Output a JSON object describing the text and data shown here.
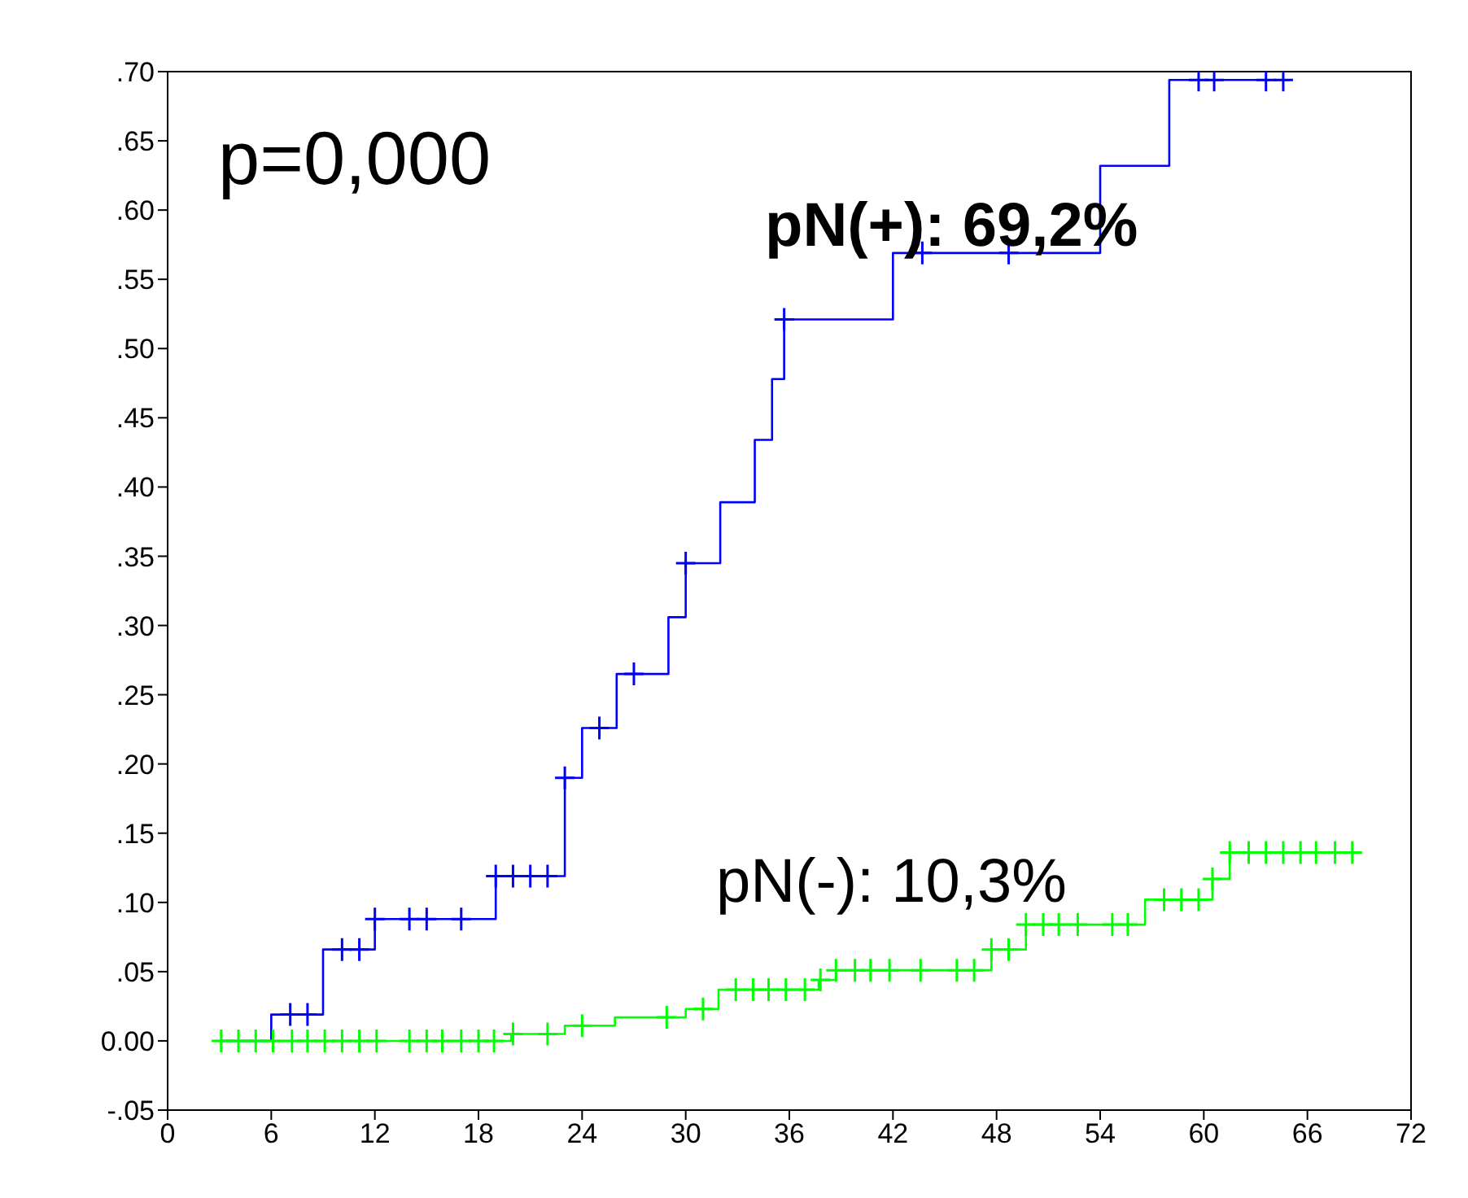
{
  "chart_data": {
    "type": "step",
    "annotations": [
      "p=0,000"
    ],
    "xlim": [
      0,
      72
    ],
    "xticks": [
      0,
      6,
      12,
      18,
      24,
      30,
      36,
      42,
      48,
      54,
      60,
      66,
      72
    ],
    "ylim": [
      -0.05,
      0.7
    ],
    "yticks": [
      {
        "value": -0.05,
        "label": "-.05"
      },
      {
        "value": 0,
        "label": "0.00"
      },
      {
        "value": 0.05,
        "label": ".05"
      },
      {
        "value": 0.1,
        "label": ".10"
      },
      {
        "value": 0.15,
        "label": ".15"
      },
      {
        "value": 0.2,
        "label": ".20"
      },
      {
        "value": 0.25,
        "label": ".25"
      },
      {
        "value": 0.3,
        "label": ".30"
      },
      {
        "value": 0.35,
        "label": ".35"
      },
      {
        "value": 0.4,
        "label": ".40"
      },
      {
        "value": 0.45,
        "label": ".45"
      },
      {
        "value": 0.5,
        "label": ".50"
      },
      {
        "value": 0.55,
        "label": ".55"
      },
      {
        "value": 0.6,
        "label": ".60"
      },
      {
        "value": 0.65,
        "label": ".65"
      },
      {
        "value": 0.7,
        "label": ".70"
      }
    ],
    "grid": false,
    "legend": false,
    "series": [
      {
        "name": "pN(+): 69,2%",
        "color": "#0000ff",
        "x": [
          3,
          6,
          9,
          12,
          19,
          23,
          24,
          26,
          29,
          30,
          32,
          34,
          35,
          35.7,
          42,
          54,
          58,
          65
        ],
        "values": [
          0,
          0.019,
          0.066,
          0.088,
          0.119,
          0.19,
          0.226,
          0.265,
          0.306,
          0.345,
          0.389,
          0.434,
          0.478,
          0.521,
          0.569,
          0.632,
          0.694,
          0.694
        ]
      },
      {
        "type": "scatter",
        "marker": "cross",
        "color": "#0000ff",
        "x": [
          7.1,
          8.1,
          10.1,
          11.1,
          12,
          14,
          15,
          17,
          19,
          20,
          21,
          22,
          23,
          25,
          27,
          30,
          35.7,
          43.7,
          48.7,
          59.7,
          60.6,
          63.6,
          64.6
        ],
        "values": [
          0.019,
          0.019,
          0.066,
          0.066,
          0.088,
          0.088,
          0.088,
          0.088,
          0.119,
          0.119,
          0.119,
          0.119,
          0.19,
          0.226,
          0.265,
          0.345,
          0.521,
          0.569,
          0.569,
          0.694,
          0.694,
          0.694,
          0.694
        ]
      },
      {
        "name": "pN(-): 10,3%",
        "color": "#00ff00",
        "x": [
          2.7,
          19.9,
          23,
          25.9,
          30,
          31.9,
          37.7,
          38.7,
          47.7,
          49.7,
          56.6,
          60.5,
          61.5,
          68.9
        ],
        "values": [
          0,
          0.005,
          0.011,
          0.017,
          0.023,
          0.037,
          0.044,
          0.051,
          0.066,
          0.084,
          0.102,
          0.117,
          0.136,
          0.136
        ]
      },
      {
        "type": "scatter",
        "marker": "cross",
        "color": "#00ff00",
        "x": [
          3.1,
          4.1,
          5.1,
          6.1,
          7.2,
          8.1,
          9.1,
          10.1,
          11.1,
          12.1,
          14,
          15,
          15.9,
          17,
          18,
          18.9,
          20,
          22,
          24,
          28.9,
          31,
          32.9,
          33.9,
          34.8,
          35.8,
          36.9,
          37.8,
          38.7,
          39.8,
          40.7,
          41.8,
          43.6,
          45.7,
          46.7,
          47.7,
          48.7,
          49.7,
          50.7,
          51.6,
          52.7,
          54.7,
          55.6,
          57.7,
          58.7,
          59.7,
          60.5,
          61.5,
          62.6,
          63.6,
          64.6,
          65.6,
          66.5,
          67.6,
          68.6
        ],
        "values": [
          0,
          0,
          0,
          0,
          0,
          0,
          0,
          0,
          0,
          0,
          0,
          0,
          0,
          0,
          0,
          0,
          0.005,
          0.005,
          0.011,
          0.017,
          0.023,
          0.037,
          0.037,
          0.037,
          0.037,
          0.037,
          0.044,
          0.051,
          0.051,
          0.051,
          0.051,
          0.051,
          0.051,
          0.051,
          0.066,
          0.066,
          0.084,
          0.084,
          0.084,
          0.084,
          0.084,
          0.084,
          0.102,
          0.102,
          0.102,
          0.117,
          0.136,
          0.136,
          0.136,
          0.136,
          0.136,
          0.136,
          0.136,
          0.136
        ]
      }
    ]
  }
}
